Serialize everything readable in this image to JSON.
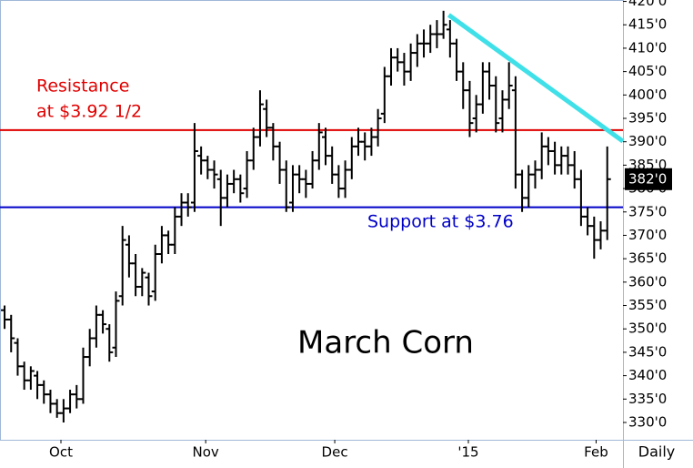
{
  "chart_data": {
    "type": "ohlc",
    "title": "March Corn",
    "period_label": "Daily",
    "color": "#000000",
    "open": [
      354,
      352,
      347,
      342,
      339,
      340,
      338,
      336,
      334,
      332,
      333,
      336,
      335,
      344,
      348,
      353,
      350,
      346,
      357,
      368,
      364,
      359,
      361,
      358,
      366,
      370,
      368,
      374,
      377,
      377,
      387,
      386,
      384,
      382,
      378,
      381,
      382,
      380,
      386,
      391,
      397,
      393,
      389,
      384,
      377,
      383,
      382,
      381,
      386,
      391,
      387,
      383,
      380,
      384,
      389,
      390,
      389,
      391,
      396,
      404,
      408,
      407,
      405,
      409,
      411,
      411,
      413,
      413,
      414,
      411,
      405,
      401,
      395,
      398,
      405,
      402,
      395,
      399,
      401,
      383,
      378,
      383,
      384,
      389,
      388,
      385,
      387,
      385,
      382,
      374,
      372,
      369,
      371
    ],
    "high": [
      355,
      353,
      348,
      343,
      342,
      341,
      339,
      337,
      335,
      335,
      337,
      338,
      346,
      350,
      355,
      354,
      351,
      358,
      372,
      370,
      366,
      363,
      362,
      368,
      372,
      371,
      376,
      379,
      379,
      394,
      389,
      387,
      386,
      384,
      383,
      384,
      383,
      388,
      393,
      401,
      399,
      394,
      390,
      386,
      385,
      385,
      384,
      388,
      394,
      393,
      389,
      385,
      386,
      391,
      393,
      392,
      393,
      397,
      406,
      410,
      410,
      409,
      411,
      413,
      414,
      415,
      416,
      418,
      416,
      412,
      407,
      403,
      400,
      407,
      407,
      404,
      401,
      407,
      404,
      384,
      385,
      386,
      392,
      391,
      390,
      389,
      389,
      388,
      384,
      376,
      374,
      373,
      389
    ],
    "low": [
      350,
      345,
      340,
      337,
      337,
      335,
      334,
      332,
      331,
      330,
      332,
      333,
      334,
      342,
      346,
      349,
      343,
      344,
      355,
      361,
      357,
      357,
      355,
      356,
      364,
      366,
      366,
      372,
      374,
      375,
      383,
      382,
      380,
      372,
      376,
      379,
      377,
      378,
      384,
      389,
      391,
      386,
      381,
      375,
      375,
      379,
      378,
      380,
      384,
      385,
      381,
      378,
      378,
      382,
      387,
      386,
      387,
      389,
      394,
      402,
      405,
      402,
      403,
      406,
      408,
      409,
      410,
      412,
      408,
      403,
      397,
      391,
      392,
      396,
      399,
      392,
      392,
      397,
      380,
      375,
      376,
      380,
      382,
      385,
      383,
      383,
      383,
      380,
      372,
      370,
      365,
      367,
      369
    ],
    "close": [
      352,
      348,
      342,
      339,
      341,
      338,
      336,
      334,
      332,
      333,
      336,
      335,
      344,
      348,
      353,
      351,
      345,
      356,
      369,
      364,
      359,
      362,
      357,
      366,
      370,
      368,
      374,
      377,
      376,
      388,
      386,
      384,
      383,
      378,
      381,
      382,
      379,
      386,
      391,
      398,
      393,
      389,
      384,
      376,
      383,
      382,
      381,
      386,
      392,
      387,
      383,
      380,
      384,
      389,
      390,
      389,
      391,
      395,
      404,
      408,
      407,
      405,
      409,
      411,
      411,
      413,
      413,
      415,
      411,
      405,
      401,
      394,
      398,
      405,
      402,
      394,
      399,
      402,
      383,
      378,
      383,
      384,
      389,
      388,
      385,
      387,
      385,
      382,
      374,
      372,
      369,
      371,
      382
    ],
    "xlim": [
      -0.7,
      94.4
    ],
    "xticks": [
      {
        "value": 8.6,
        "label": "Oct"
      },
      {
        "value": 30.7,
        "label": "Nov"
      },
      {
        "value": 50.4,
        "label": "Dec"
      },
      {
        "value": 70.8,
        "label": "'15"
      },
      {
        "value": 90.3,
        "label": "Feb"
      }
    ],
    "ylim": [
      326.3,
      420.3
    ],
    "yticks": [
      {
        "value": 330,
        "label": "330'0"
      },
      {
        "value": 335,
        "label": "335'0"
      },
      {
        "value": 340,
        "label": "340'0"
      },
      {
        "value": 345,
        "label": "345'0"
      },
      {
        "value": 350,
        "label": "350'0"
      },
      {
        "value": 355,
        "label": "355'0"
      },
      {
        "value": 360,
        "label": "360'0"
      },
      {
        "value": 365,
        "label": "365'0"
      },
      {
        "value": 370,
        "label": "370'0"
      },
      {
        "value": 375,
        "label": "375'0"
      },
      {
        "value": 380,
        "label": "380'0"
      },
      {
        "value": 385,
        "label": "385'0"
      },
      {
        "value": 390,
        "label": "390'0"
      },
      {
        "value": 395,
        "label": "395'0"
      },
      {
        "value": 400,
        "label": "400'0"
      },
      {
        "value": 405,
        "label": "405'0"
      },
      {
        "value": 410,
        "label": "410'0"
      },
      {
        "value": 415,
        "label": "415'0"
      },
      {
        "value": 420,
        "label": "420'0"
      }
    ],
    "last_price": {
      "value": 382,
      "label": "382'0"
    },
    "levels": [
      {
        "value": 392.5,
        "color": "#e00000",
        "text": [
          "Resistance",
          "at $3.92 1/2"
        ]
      },
      {
        "value": 376,
        "color": "#0000c8",
        "text": [
          "Support at $3.76"
        ]
      }
    ],
    "trendline": {
      "color": "#40e0e8",
      "x": [
        67.8,
        94.4
      ],
      "y": [
        417.1,
        390.1
      ]
    }
  }
}
